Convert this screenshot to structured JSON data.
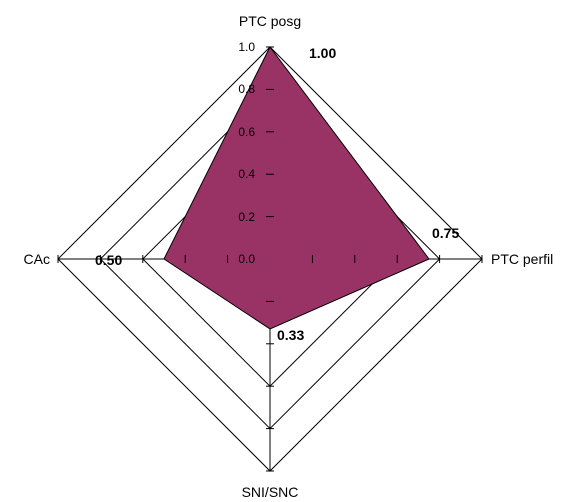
{
  "chart_data": {
    "type": "radar",
    "axes": [
      "PTC posg",
      "PTC perfil",
      "SNI/SNC",
      "CAc"
    ],
    "values": [
      1.0,
      0.75,
      0.33,
      0.5
    ],
    "value_labels": [
      "1.00",
      "0.75",
      "0.33",
      "0.50"
    ],
    "tick_labels": [
      "0.0",
      "0.2",
      "0.4",
      "0.6",
      "0.8",
      "1.0"
    ],
    "rlim": [
      0.0,
      1.0
    ],
    "grid_levels": [
      0.6,
      0.8,
      1.0
    ],
    "grid": true,
    "legend": "none",
    "colors": {
      "fill": "#993366",
      "outline": "#000000",
      "grid": "#000000"
    }
  }
}
